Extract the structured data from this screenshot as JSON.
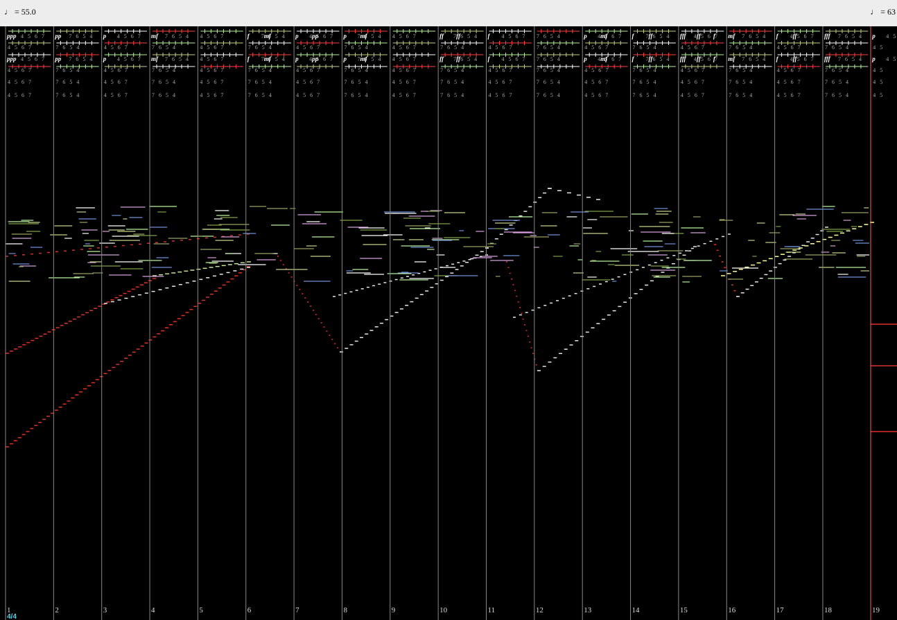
{
  "toolbar": {
    "tempo_start": "♩ = 55.0",
    "tempo_end": "♩ = 63"
  },
  "time_signature": "4/4",
  "measures": [
    {
      "number": "1",
      "fingering": "4 5 6 7",
      "dynamics": [
        "ppp"
      ]
    },
    {
      "number": "2",
      "fingering": "7 6 5 4",
      "dynamics": [
        "pp"
      ]
    },
    {
      "number": "3",
      "fingering": "4 5 6 7",
      "dynamics": [
        "p"
      ]
    },
    {
      "number": "4",
      "fingering": "7 6 5 4",
      "dynamics": [
        "mf"
      ]
    },
    {
      "number": "5",
      "fingering": "4 5 6 7",
      "dynamics": []
    },
    {
      "number": "6",
      "fingering": "7 6 5 4",
      "dynamics": [
        "f",
        "mf"
      ]
    },
    {
      "number": "7",
      "fingering": "4 5 6 7",
      "dynamics": [
        "p",
        "pp"
      ]
    },
    {
      "number": "8",
      "fingering": "7 6 5 4",
      "dynamics": [
        "p",
        "mf"
      ]
    },
    {
      "number": "9",
      "fingering": "4 5 6 7",
      "dynamics": []
    },
    {
      "number": "10",
      "fingering": "7 6 5 4",
      "dynamics": [
        "ff",
        "ff"
      ]
    },
    {
      "number": "11",
      "fingering": "4 5 6 7",
      "dynamics": [
        "f"
      ]
    },
    {
      "number": "12",
      "fingering": "7 6 5 4",
      "dynamics": []
    },
    {
      "number": "13",
      "fingering": "4 5 6 7",
      "dynamics": [
        "p",
        "mf"
      ]
    },
    {
      "number": "14",
      "fingering": "7 6 5 4",
      "dynamics": [
        "f",
        "ff"
      ]
    },
    {
      "number": "15",
      "fingering": "4 5 6 7",
      "dynamics": [
        "fff",
        "ff",
        "f"
      ]
    },
    {
      "number": "16",
      "fingering": "7 6 5 4",
      "dynamics": [
        "mf"
      ]
    },
    {
      "number": "17",
      "fingering": "4 5 6 7",
      "dynamics": [
        "f",
        "ff"
      ]
    },
    {
      "number": "18",
      "fingering": "7 6 5 4",
      "dynamics": [
        "fff"
      ]
    },
    {
      "number": "19",
      "fingering": "4 5",
      "dynamics": [
        "p"
      ]
    }
  ]
}
